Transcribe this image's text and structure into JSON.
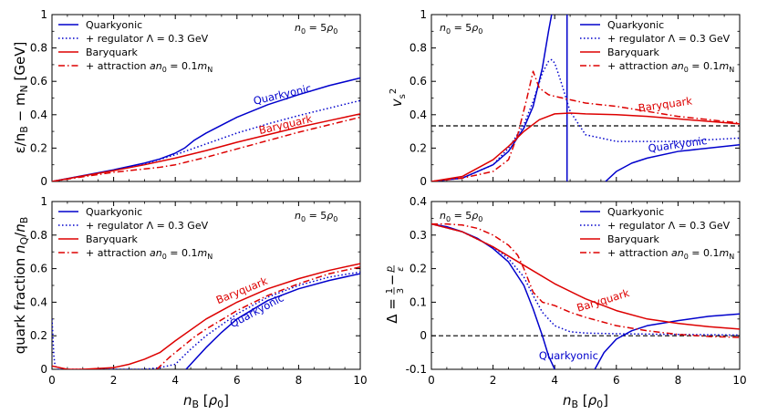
{
  "colors": {
    "blue": "#0000cc",
    "red": "#dd0000",
    "black": "#000000"
  },
  "chart_data": [
    {
      "type": "line",
      "id": "tl",
      "title": "",
      "ylabel": "ε/n_B − m_N [GeV]",
      "xlabel": "",
      "xlim": [
        0,
        10
      ],
      "ylim": [
        0,
        1.0
      ],
      "xticks": [
        0,
        2,
        4,
        6,
        8,
        10
      ],
      "yticks": [
        0,
        0.2,
        0.4,
        0.6,
        0.8,
        1.0
      ],
      "xticklabels": false,
      "annotation": "n₀ = 5ρ₀",
      "legend": [
        "Quarkyonic",
        "+ regulator Λ = 0.3 GeV",
        "Baryquark",
        "+ attraction an₀ = 0.1m_N"
      ],
      "series": [
        {
          "name": "Quarkyonic",
          "style": "solid",
          "color": "blue",
          "x": [
            0,
            1,
            2,
            3,
            3.5,
            4,
            4.3,
            4.6,
            5,
            6,
            7,
            8,
            9,
            10
          ],
          "y": [
            0,
            0.035,
            0.07,
            0.11,
            0.135,
            0.17,
            0.2,
            0.245,
            0.29,
            0.385,
            0.46,
            0.52,
            0.575,
            0.62
          ]
        },
        {
          "name": "+ regulator",
          "style": "dotted",
          "color": "blue",
          "x": [
            0,
            1,
            2,
            3,
            4,
            5,
            6,
            7,
            8,
            9,
            10
          ],
          "y": [
            0,
            0.033,
            0.068,
            0.105,
            0.16,
            0.225,
            0.29,
            0.345,
            0.395,
            0.44,
            0.485
          ]
        },
        {
          "name": "Baryquark",
          "style": "solid",
          "color": "red",
          "x": [
            0,
            1,
            2,
            3,
            4,
            5,
            6,
            7,
            8,
            9,
            10
          ],
          "y": [
            0,
            0.033,
            0.065,
            0.1,
            0.14,
            0.185,
            0.235,
            0.28,
            0.325,
            0.365,
            0.405
          ]
        },
        {
          "name": "+ attraction",
          "style": "dashdot",
          "color": "red",
          "x": [
            0,
            1,
            2,
            3,
            3.5,
            4,
            5,
            6,
            7,
            8,
            9,
            10
          ],
          "y": [
            0,
            0.028,
            0.055,
            0.075,
            0.085,
            0.1,
            0.145,
            0.195,
            0.245,
            0.295,
            0.34,
            0.385
          ]
        }
      ],
      "curve_labels": [
        {
          "text": "Quarkyonic",
          "color": "blue",
          "x": 7.5,
          "y": 0.5,
          "angle": -13
        },
        {
          "text": "Baryquark",
          "color": "red",
          "x": 7.6,
          "y": 0.32,
          "angle": -13
        }
      ],
      "hlines": []
    },
    {
      "type": "line",
      "id": "tr",
      "title": "",
      "ylabel": "v_s²",
      "xlabel": "",
      "xlim": [
        0,
        10
      ],
      "ylim": [
        0,
        1.0
      ],
      "xticks": [
        0,
        2,
        4,
        6,
        8,
        10
      ],
      "yticks": [
        0,
        0.2,
        0.4,
        0.6,
        0.8,
        1.0
      ],
      "xticklabels": false,
      "annotation": "n₀ = 5ρ₀",
      "legend": [
        "Quarkyonic",
        "+ regulator Λ = 0.3 GeV",
        "Baryquark",
        "+ attraction an₀ = 0.1m_N"
      ],
      "series": [
        {
          "name": "Quarkyonic (lower branch)",
          "style": "solid",
          "color": "blue",
          "x": [
            0,
            1,
            2,
            2.5,
            3,
            3.3,
            3.6,
            3.8,
            3.9
          ],
          "y": [
            0,
            0.02,
            0.1,
            0.18,
            0.32,
            0.45,
            0.68,
            0.9,
            1.0
          ]
        },
        {
          "name": "Quarkyonic (vertical)",
          "style": "solid",
          "color": "blue",
          "x": [
            4.4,
            4.4
          ],
          "y": [
            1.0,
            0
          ]
        },
        {
          "name": "Quarkyonic (upper branch)",
          "style": "solid",
          "color": "blue",
          "x": [
            5.65,
            6,
            6.5,
            7,
            8,
            9,
            10
          ],
          "y": [
            0,
            0.06,
            0.11,
            0.14,
            0.18,
            0.2,
            0.22
          ]
        },
        {
          "name": "+ regulator",
          "style": "dotted",
          "color": "blue",
          "x": [
            0,
            1,
            2,
            2.5,
            3,
            3.3,
            3.6,
            3.8,
            3.9,
            4.0,
            4.2,
            4.5,
            5,
            6,
            7,
            8,
            9,
            10
          ],
          "y": [
            0,
            0.02,
            0.1,
            0.2,
            0.34,
            0.48,
            0.65,
            0.72,
            0.73,
            0.71,
            0.6,
            0.42,
            0.28,
            0.24,
            0.24,
            0.24,
            0.25,
            0.26
          ]
        },
        {
          "name": "Baryquark",
          "style": "solid",
          "color": "red",
          "x": [
            0,
            1,
            2,
            2.5,
            3,
            3.5,
            4,
            4.5,
            5,
            6,
            7,
            8,
            9,
            10
          ],
          "y": [
            0,
            0.03,
            0.13,
            0.21,
            0.3,
            0.37,
            0.405,
            0.41,
            0.405,
            0.4,
            0.39,
            0.375,
            0.36,
            0.345
          ]
        },
        {
          "name": "+ attraction",
          "style": "dashdot",
          "color": "red",
          "x": [
            0,
            1,
            2,
            2.5,
            2.8,
            3.1,
            3.3,
            3.5,
            3.8,
            4,
            4.5,
            5,
            6,
            7,
            8,
            9,
            10
          ],
          "y": [
            0,
            0.02,
            0.06,
            0.13,
            0.28,
            0.5,
            0.66,
            0.56,
            0.52,
            0.51,
            0.49,
            0.47,
            0.45,
            0.42,
            0.39,
            0.37,
            0.35
          ]
        }
      ],
      "curve_labels": [
        {
          "text": "Baryquark",
          "color": "red",
          "x": 7.6,
          "y": 0.44,
          "angle": -8
        },
        {
          "text": "Quarkyonic",
          "color": "blue",
          "x": 8.0,
          "y": 0.2,
          "angle": -8
        }
      ],
      "hlines": [
        {
          "y": 0.3333,
          "style": "dashed",
          "color": "black"
        }
      ]
    },
    {
      "type": "line",
      "id": "bl",
      "title": "",
      "ylabel": "quark fraction n_Q/n_B",
      "xlabel": "n_B [ρ₀]",
      "xlim": [
        0,
        10
      ],
      "ylim": [
        0,
        1.0
      ],
      "xticks": [
        0,
        2,
        4,
        6,
        8,
        10
      ],
      "yticks": [
        0,
        0.2,
        0.4,
        0.6,
        0.8,
        1.0
      ],
      "xticklabels": true,
      "annotation": "n₀ = 5ρ₀",
      "legend": [
        "Quarkyonic",
        "+ regulator Λ = 0.3 GeV",
        "Baryquark",
        "+ attraction an₀ = 0.1m_N"
      ],
      "series": [
        {
          "name": "Quarkyonic",
          "style": "solid",
          "color": "blue",
          "x": [
            4.35,
            4.6,
            5,
            5.5,
            6,
            7,
            8,
            9,
            10
          ],
          "y": [
            0,
            0.05,
            0.13,
            0.22,
            0.3,
            0.41,
            0.48,
            0.53,
            0.57
          ]
        },
        {
          "name": "+ regulator",
          "style": "dotted",
          "color": "blue",
          "x": [
            0,
            0.03,
            0.06,
            0.1,
            0.2,
            0.5,
            1,
            2,
            3,
            3.5,
            4,
            4.5,
            5,
            6,
            7,
            8,
            9,
            10
          ],
          "y": [
            0.3,
            0.2,
            0.08,
            0.02,
            0.0,
            0.0,
            0.0,
            0.0,
            0.0,
            0.01,
            0.03,
            0.12,
            0.2,
            0.33,
            0.43,
            0.5,
            0.55,
            0.58
          ]
        },
        {
          "name": "Baryquark",
          "style": "solid",
          "color": "red",
          "x": [
            0,
            0.5,
            1,
            2,
            2.5,
            3,
            3.5,
            4,
            5,
            6,
            7,
            8,
            9,
            10
          ],
          "y": [
            0.02,
            0.0,
            0.0,
            0.01,
            0.03,
            0.06,
            0.1,
            0.17,
            0.3,
            0.4,
            0.48,
            0.54,
            0.59,
            0.63
          ]
        },
        {
          "name": "+ attraction",
          "style": "dashdot",
          "color": "red",
          "x": [
            3.4,
            3.8,
            4.2,
            4.6,
            5,
            6,
            7,
            8,
            9,
            10
          ],
          "y": [
            0,
            0.07,
            0.13,
            0.19,
            0.24,
            0.35,
            0.44,
            0.51,
            0.57,
            0.61
          ]
        }
      ],
      "curve_labels": [
        {
          "text": "Baryquark",
          "color": "red",
          "x": 6.2,
          "y": 0.45,
          "angle": -22
        },
        {
          "text": "Quarkyonic",
          "color": "blue",
          "x": 6.7,
          "y": 0.33,
          "angle": -28
        }
      ],
      "hlines": []
    },
    {
      "type": "line",
      "id": "br",
      "title": "",
      "ylabel": "Δ = 1/3 − p/ε",
      "xlabel": "n_B [ρ₀]",
      "xlim": [
        0,
        10
      ],
      "ylim": [
        -0.1,
        0.4
      ],
      "xticks": [
        0,
        2,
        4,
        6,
        8,
        10
      ],
      "yticks": [
        -0.1,
        0.0,
        0.1,
        0.2,
        0.3,
        0.4
      ],
      "xticklabels": true,
      "annotation": "n₀ = 5ρ₀",
      "legend": [
        "Quarkyonic",
        "+ regulator Λ = 0.3 GeV",
        "Baryquark",
        "+ attraction an₀ = 0.1m_N"
      ],
      "series": [
        {
          "name": "Quarkyonic (lower branch)",
          "style": "solid",
          "color": "blue",
          "x": [
            0,
            0.5,
            1,
            1.5,
            2,
            2.5,
            3,
            3.3,
            3.6,
            3.8,
            4.0
          ],
          "y": [
            0.333,
            0.325,
            0.31,
            0.29,
            0.26,
            0.22,
            0.15,
            0.08,
            0.0,
            -0.06,
            -0.1
          ]
        },
        {
          "name": "Quarkyonic (upper branch)",
          "style": "solid",
          "color": "blue",
          "x": [
            5.3,
            5.6,
            6,
            6.5,
            7,
            8,
            9,
            10
          ],
          "y": [
            -0.1,
            -0.05,
            -0.01,
            0.015,
            0.03,
            0.045,
            0.058,
            0.065
          ]
        },
        {
          "name": "+ regulator",
          "style": "dotted",
          "color": "blue",
          "x": [
            0,
            1,
            2,
            2.5,
            3,
            3.3,
            3.6,
            4,
            4.5,
            5,
            6,
            7,
            8,
            9,
            10
          ],
          "y": [
            0.333,
            0.31,
            0.265,
            0.23,
            0.175,
            0.12,
            0.07,
            0.03,
            0.012,
            0.008,
            0.006,
            0.005,
            0.004,
            0.003,
            0.002
          ]
        },
        {
          "name": "Baryquark",
          "style": "solid",
          "color": "red",
          "x": [
            0,
            1,
            2,
            3,
            4,
            5,
            6,
            7,
            8,
            9,
            10
          ],
          "y": [
            0.333,
            0.31,
            0.265,
            0.21,
            0.155,
            0.11,
            0.075,
            0.05,
            0.037,
            0.027,
            0.02
          ]
        },
        {
          "name": "+ attraction",
          "style": "dashdot",
          "color": "red",
          "x": [
            0,
            0.5,
            1,
            1.5,
            2,
            2.5,
            2.8,
            3,
            3.3,
            3.6,
            4,
            4.5,
            5,
            6,
            7,
            8,
            9,
            10
          ],
          "y": [
            0.333,
            0.333,
            0.33,
            0.32,
            0.3,
            0.27,
            0.24,
            0.2,
            0.13,
            0.1,
            0.09,
            0.07,
            0.055,
            0.03,
            0.015,
            0.004,
            -0.002,
            -0.005
          ]
        }
      ],
      "curve_labels": [
        {
          "text": "Baryquark",
          "color": "red",
          "x": 5.6,
          "y": 0.095,
          "angle": -17
        },
        {
          "text": "Quarkyonic",
          "color": "blue",
          "x": 4.45,
          "y": -0.07,
          "angle": 0
        }
      ],
      "hlines": [
        {
          "y": 0.0,
          "style": "dashed",
          "color": "black"
        }
      ]
    }
  ]
}
